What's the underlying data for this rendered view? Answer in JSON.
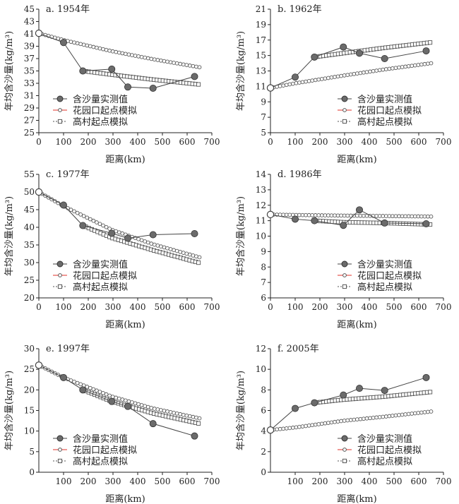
{
  "legend": {
    "measured": "含沙量实测值",
    "huayuankou": "花园口起点模拟",
    "gaocun": "高村起点模拟"
  },
  "colors": {
    "measured_fill": "#6b6b6b",
    "measured_line": "#444444",
    "hyk_line": "#e0302a",
    "marker_stroke": "#555555"
  },
  "chart_data": [
    {
      "type": "line",
      "title": "a. 1954年",
      "xlabel": "距离(km)",
      "ylabel": "年均含沙量(kg/m³)",
      "xlim": [
        0,
        700
      ],
      "xticks": [
        0,
        100,
        200,
        300,
        400,
        500,
        600,
        700
      ],
      "ylim": [
        25,
        45
      ],
      "yticks": [
        25,
        27,
        29,
        31,
        33,
        35,
        37,
        39,
        41,
        43,
        45
      ],
      "legend_pos": "bottom-left",
      "series": [
        {
          "name": "含沙量实测值",
          "x": [
            0,
            100,
            178,
            295,
            360,
            462,
            630
          ],
          "y": [
            41.1,
            39.6,
            35.0,
            35.3,
            32.4,
            32.2,
            34.1
          ]
        },
        {
          "name": "花园口起点模拟",
          "x": [
            0,
            100,
            295,
            462,
            650
          ],
          "y": [
            41.1,
            40.0,
            38.2,
            36.9,
            35.6
          ]
        },
        {
          "name": "高村起点模拟",
          "x": [
            178,
            295,
            462,
            650
          ],
          "y": [
            35.0,
            34.4,
            33.6,
            32.8
          ]
        }
      ]
    },
    {
      "type": "line",
      "title": "b. 1962年",
      "xlabel": "距离(km)",
      "ylabel": "年均含沙量(kg/m³)",
      "xlim": [
        0,
        700
      ],
      "xticks": [
        0,
        100,
        200,
        300,
        400,
        500,
        600,
        700
      ],
      "ylim": [
        5,
        21
      ],
      "yticks": [
        5,
        7,
        9,
        11,
        13,
        15,
        17,
        19,
        21
      ],
      "legend_pos": "bottom-right",
      "series": [
        {
          "name": "含沙量实测值",
          "x": [
            0,
            100,
            178,
            295,
            360,
            462,
            630
          ],
          "y": [
            10.8,
            12.2,
            14.8,
            16.1,
            15.3,
            14.6,
            15.6
          ]
        },
        {
          "name": "花园口起点模拟",
          "x": [
            0,
            100,
            295,
            462,
            650
          ],
          "y": [
            10.8,
            11.4,
            12.4,
            13.2,
            14.0
          ]
        },
        {
          "name": "高村起点模拟",
          "x": [
            178,
            295,
            462,
            650
          ],
          "y": [
            14.8,
            15.3,
            16.0,
            16.7
          ]
        }
      ]
    },
    {
      "type": "line",
      "title": "c. 1977年",
      "xlabel": "距离(km)",
      "ylabel": "年均含沙量(kg/m³)",
      "xlim": [
        0,
        700
      ],
      "xticks": [
        0,
        100,
        200,
        300,
        400,
        500,
        600,
        700
      ],
      "ylim": [
        20,
        55
      ],
      "yticks": [
        20,
        25,
        30,
        35,
        40,
        45,
        50,
        55
      ],
      "legend_pos": "bottom-left",
      "series": [
        {
          "name": "含沙量实测值",
          "x": [
            0,
            100,
            178,
            295,
            360,
            462,
            630
          ],
          "y": [
            50.0,
            46.3,
            40.5,
            38.3,
            36.9,
            37.9,
            38.2
          ]
        },
        {
          "name": "花园口起点模拟",
          "x": [
            0,
            100,
            295,
            462,
            650
          ],
          "y": [
            50.0,
            46.0,
            39.3,
            35.2,
            31.5
          ]
        },
        {
          "name": "高村起点模拟",
          "x": [
            178,
            295,
            462,
            650
          ],
          "y": [
            40.5,
            37.0,
            33.5,
            29.9
          ]
        }
      ]
    },
    {
      "type": "line",
      "title": "d. 1986年",
      "xlabel": "距离(km)",
      "ylabel": "年均含沙量(kg/m³)",
      "xlim": [
        0,
        700
      ],
      "xticks": [
        0,
        100,
        200,
        300,
        400,
        500,
        600,
        700
      ],
      "ylim": [
        6,
        14
      ],
      "yticks": [
        6,
        7,
        8,
        9,
        10,
        11,
        12,
        13,
        14
      ],
      "legend_pos": "bottom-right",
      "series": [
        {
          "name": "含沙量实测值",
          "x": [
            0,
            100,
            178,
            295,
            360,
            462,
            630
          ],
          "y": [
            11.4,
            11.1,
            11.0,
            10.7,
            11.7,
            10.85,
            10.8
          ]
        },
        {
          "name": "花园口起点模拟",
          "x": [
            0,
            100,
            295,
            462,
            650
          ],
          "y": [
            11.4,
            11.37,
            11.33,
            11.3,
            11.27
          ]
        },
        {
          "name": "高村起点模拟",
          "x": [
            178,
            295,
            462,
            650
          ],
          "y": [
            11.0,
            10.9,
            10.85,
            10.75
          ]
        }
      ]
    },
    {
      "type": "line",
      "title": "e. 1997年",
      "xlabel": "距离(km)",
      "ylabel": "年均含沙量(kg/m³)",
      "xlim": [
        0,
        700
      ],
      "xticks": [
        100,
        200,
        300,
        400,
        500,
        600,
        700
      ],
      "ylim": [
        0,
        30
      ],
      "yticks": [
        0,
        5,
        10,
        15,
        20,
        25,
        30
      ],
      "legend_pos": "bottom-left",
      "series": [
        {
          "name": "含沙量实测值",
          "x": [
            0,
            100,
            178,
            295,
            360,
            462,
            630
          ],
          "y": [
            26.0,
            23.0,
            20.0,
            17.2,
            16.0,
            11.8,
            8.8
          ]
        },
        {
          "name": "花园口起点模拟",
          "x": [
            0,
            100,
            295,
            462,
            650
          ],
          "y": [
            26.0,
            23.0,
            18.4,
            15.5,
            13.1
          ]
        },
        {
          "name": "高村起点模拟",
          "x": [
            178,
            295,
            462,
            650
          ],
          "y": [
            20.0,
            17.2,
            14.3,
            11.8
          ]
        }
      ]
    },
    {
      "type": "line",
      "title": "f. 2005年",
      "xlabel": "距离(km)",
      "ylabel": "年均含沙量(kg/m³)",
      "xlim": [
        0,
        700
      ],
      "xticks": [
        100,
        200,
        300,
        400,
        500,
        600,
        700
      ],
      "ylim": [
        0,
        12
      ],
      "yticks": [
        0,
        2,
        4,
        6,
        8,
        10,
        12
      ],
      "legend_pos": "bottom-right",
      "series": [
        {
          "name": "含沙量实测值",
          "x": [
            0,
            100,
            178,
            295,
            360,
            462,
            630
          ],
          "y": [
            4.1,
            6.2,
            6.75,
            7.5,
            8.15,
            7.95,
            9.2
          ]
        },
        {
          "name": "花园口起点模拟",
          "x": [
            0,
            100,
            295,
            462,
            650
          ],
          "y": [
            4.1,
            4.35,
            5.0,
            5.4,
            5.9
          ]
        },
        {
          "name": "高村起点模拟",
          "x": [
            178,
            295,
            462,
            650
          ],
          "y": [
            6.75,
            7.05,
            7.35,
            7.8
          ]
        }
      ]
    }
  ]
}
